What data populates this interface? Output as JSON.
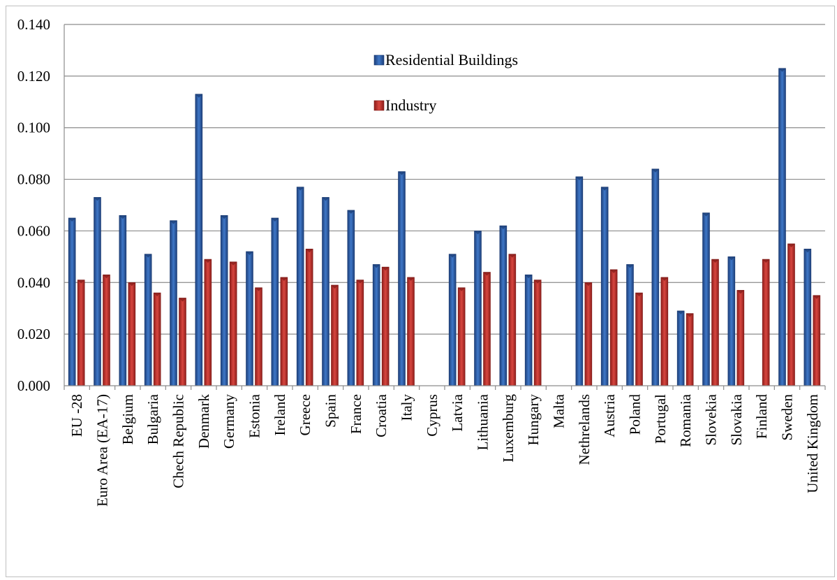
{
  "chart_data": {
    "type": "bar",
    "categories": [
      "EU -28",
      "Euro Area (EA-17)",
      "Belgium",
      "Bulgaria",
      "Chech Republic",
      "Denmark",
      "Germany",
      "Estonia",
      "Ireland",
      "Greece",
      "Spain",
      "France",
      "Croatia",
      "Italy",
      "Cyprus",
      "Latvia",
      "Lithuania",
      "Luxemburg",
      "Hungary",
      "Malta",
      "Nethrelands",
      "Austria",
      "Poland",
      "Portugal",
      "Romania",
      "Slovekia",
      "Slovakia",
      "Finland",
      "Sweden",
      "United Kingdom"
    ],
    "series": [
      {
        "name": "Residential Buildings",
        "color": "#2f5fa8",
        "values": [
          0.065,
          0.073,
          0.066,
          0.051,
          0.064,
          0.113,
          0.066,
          0.052,
          0.065,
          0.077,
          0.073,
          0.068,
          0.047,
          0.083,
          null,
          0.051,
          0.06,
          0.062,
          0.043,
          null,
          0.081,
          0.077,
          0.047,
          0.084,
          0.029,
          0.067,
          0.05,
          null,
          0.123,
          0.053
        ]
      },
      {
        "name": "Industry",
        "color": "#c0302c",
        "values": [
          0.041,
          0.043,
          0.04,
          0.036,
          0.034,
          0.049,
          0.048,
          0.038,
          0.042,
          0.053,
          0.039,
          0.041,
          0.046,
          0.042,
          null,
          0.038,
          0.044,
          0.051,
          0.041,
          null,
          0.04,
          0.045,
          0.036,
          0.042,
          0.028,
          0.049,
          0.037,
          0.049,
          0.055,
          0.035
        ]
      }
    ],
    "yticks": [
      "0.000",
      "0.020",
      "0.040",
      "0.060",
      "0.080",
      "0.100",
      "0.120",
      "0.140"
    ],
    "ylim": [
      0,
      0.14
    ],
    "grid": true,
    "legend": "top-center"
  }
}
